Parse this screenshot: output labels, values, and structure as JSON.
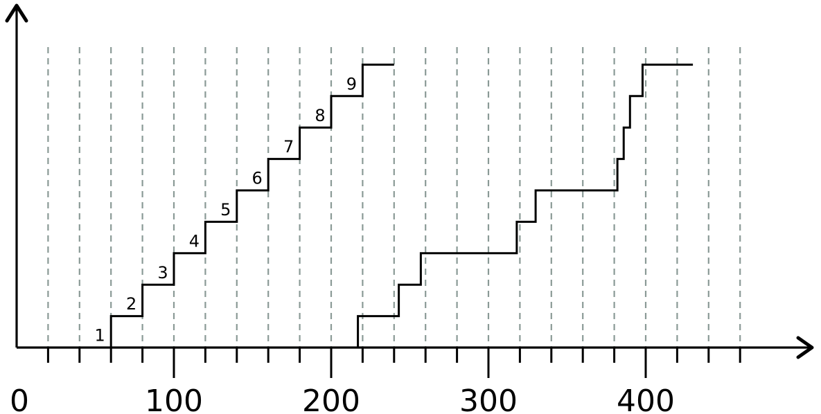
{
  "chart_data": {
    "type": "line",
    "title": "",
    "xlabel": "",
    "ylabel": "",
    "xlim": [
      0,
      510
    ],
    "ylim": [
      0,
      9.2
    ],
    "x_tick_labels": [
      {
        "x": 0,
        "label": "0"
      },
      {
        "x": 100,
        "label": "100"
      },
      {
        "x": 200,
        "label": "200"
      },
      {
        "x": 300,
        "label": "300"
      },
      {
        "x": 400,
        "label": "400"
      }
    ],
    "gridlines_x": [
      20,
      40,
      60,
      80,
      100,
      120,
      140,
      160,
      180,
      200,
      220,
      240,
      260,
      280,
      300,
      320,
      340,
      360,
      380,
      400,
      420,
      440,
      460
    ],
    "grid": "vertical dashed",
    "series": [
      {
        "x": [
          60,
          60,
          80,
          80,
          100,
          100,
          120,
          120,
          140,
          140,
          160,
          160,
          180,
          180,
          200,
          200,
          220,
          220,
          240
        ],
        "y": [
          0,
          1,
          1,
          2,
          2,
          3,
          3,
          4,
          4,
          5,
          5,
          6,
          6,
          7,
          7,
          8,
          8,
          9,
          9
        ],
        "step_labels": [
          "1",
          "2",
          "3",
          "4",
          "5",
          "6",
          "7",
          "8",
          "9"
        ]
      },
      {
        "x": [
          217,
          217,
          243,
          243,
          257,
          257,
          318,
          318,
          330,
          330,
          382,
          382,
          386,
          386,
          390,
          390,
          398,
          398,
          411,
          411,
          430
        ],
        "y": [
          0,
          1,
          1,
          2,
          2,
          3,
          3,
          4,
          4,
          5,
          5,
          6,
          6,
          7,
          7,
          8,
          8,
          9,
          9,
          9,
          9
        ]
      }
    ]
  }
}
